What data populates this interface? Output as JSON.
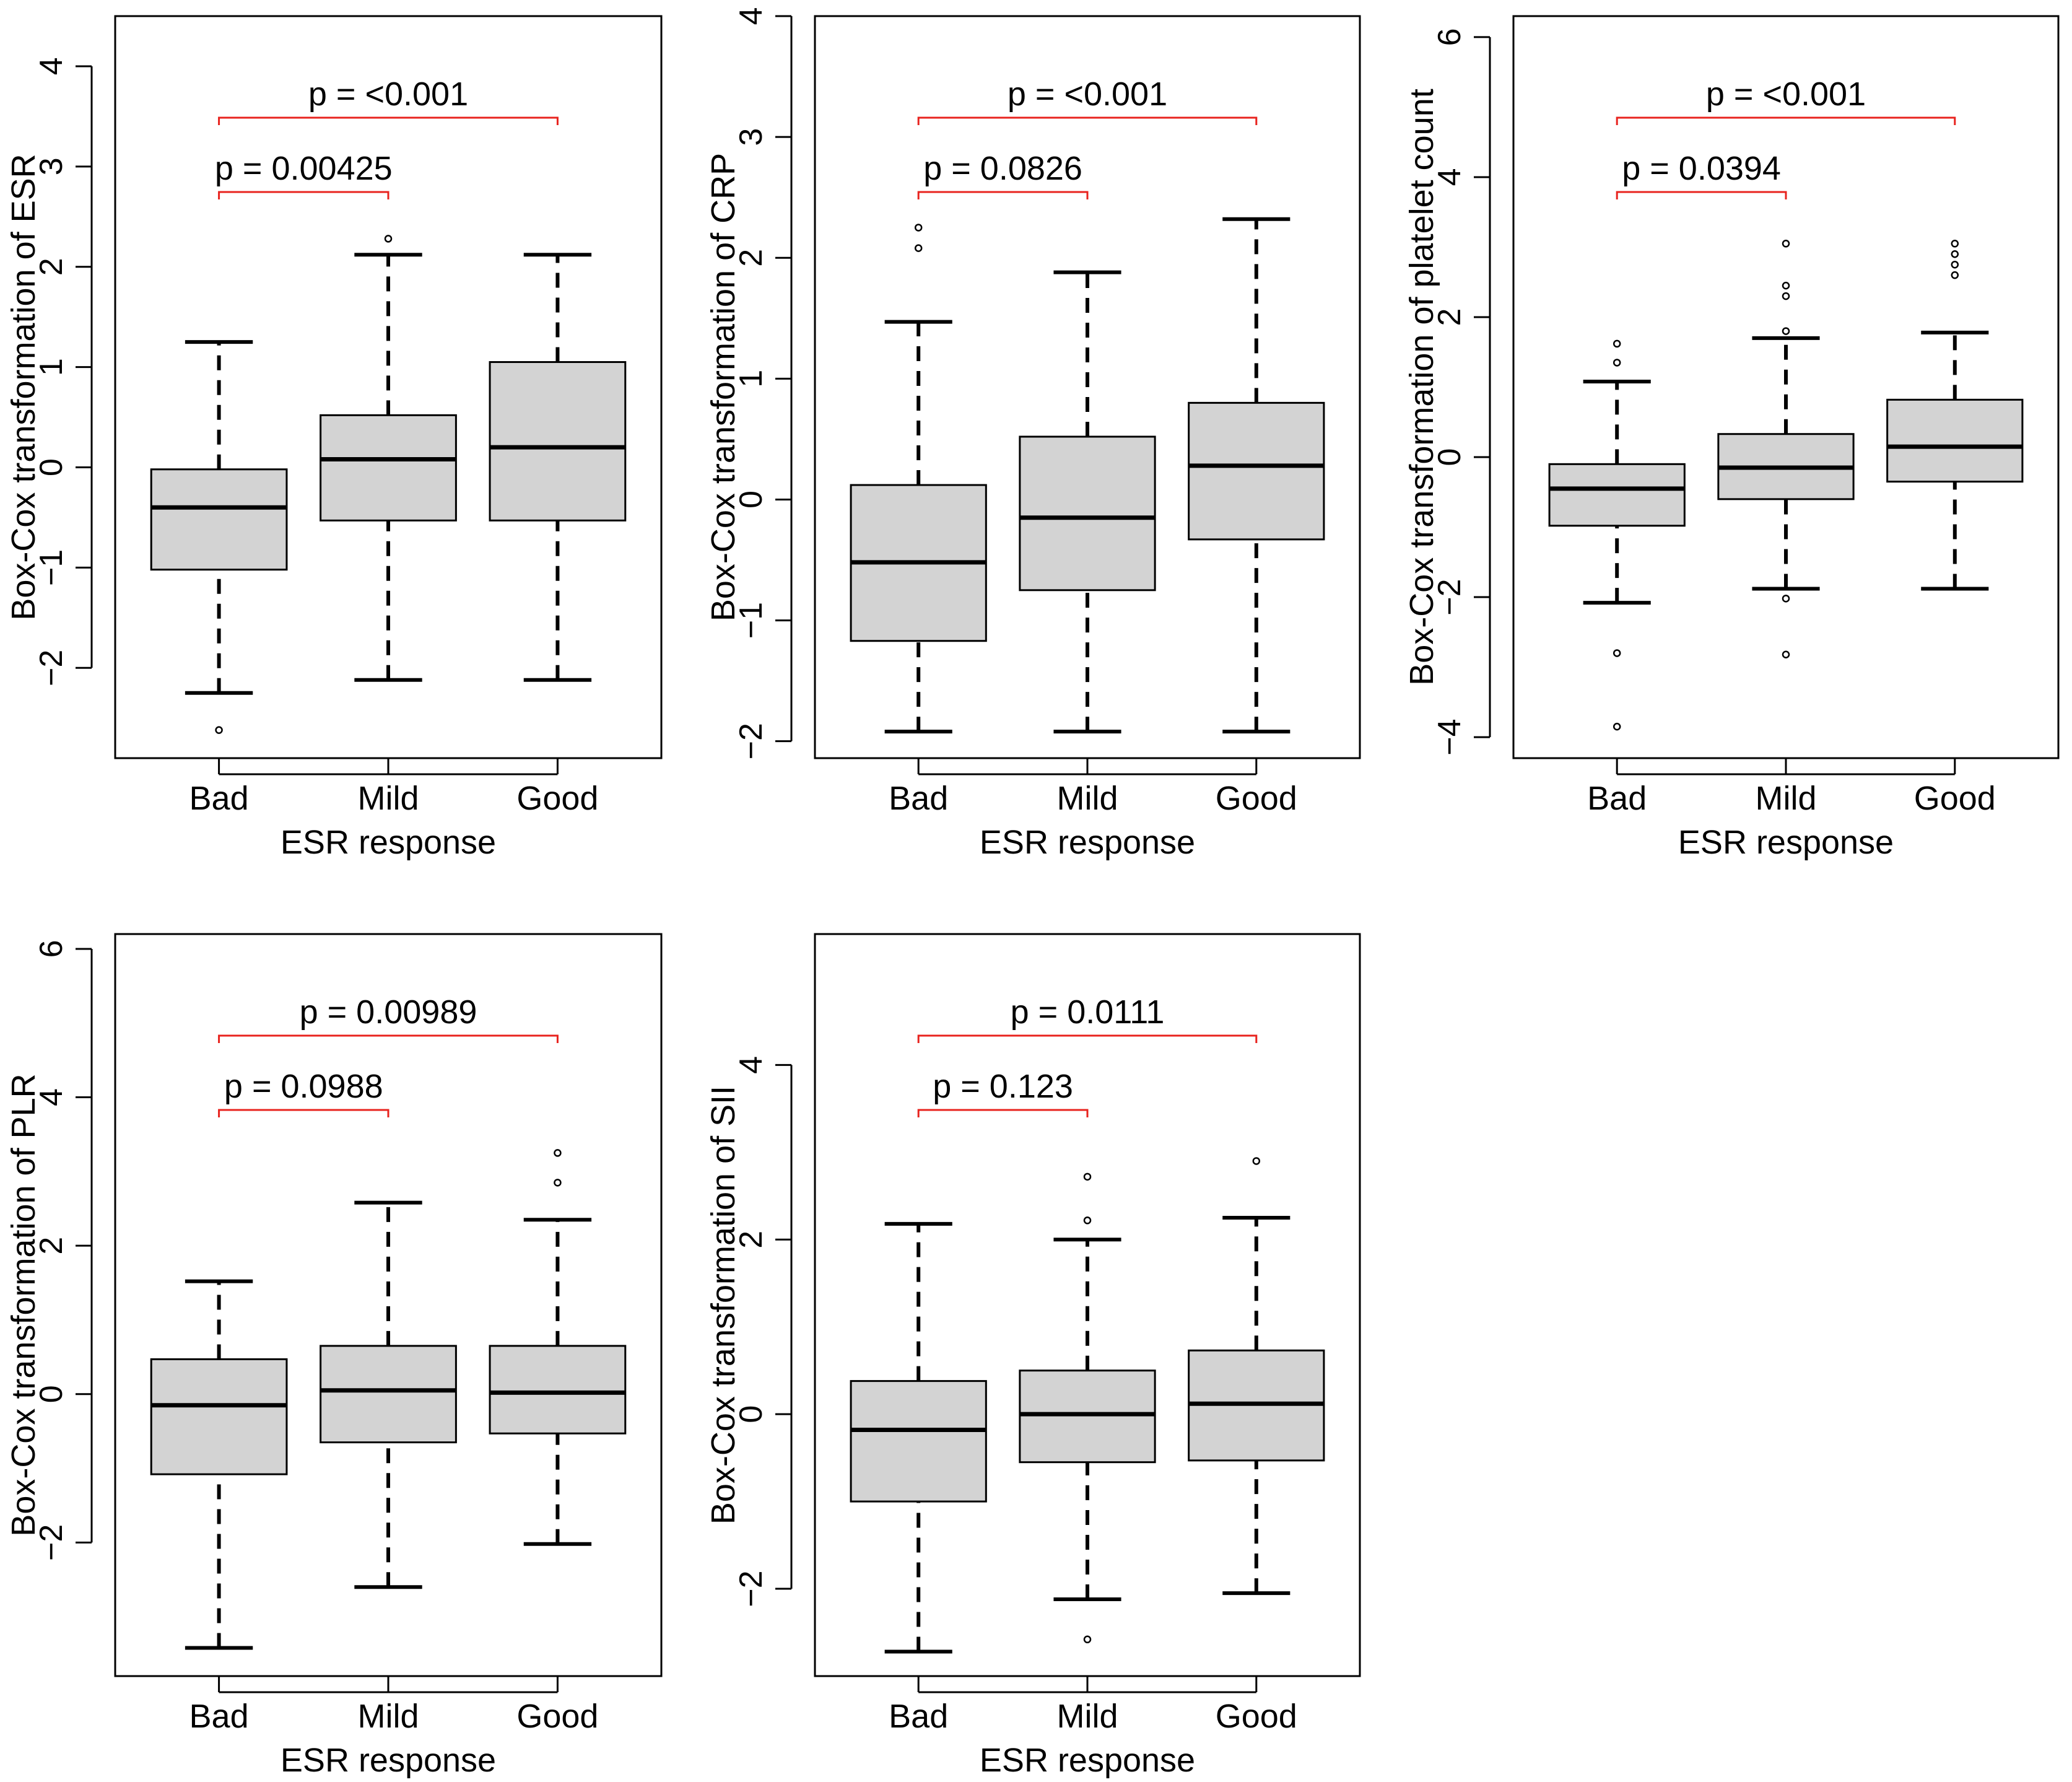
{
  "chart_data": [
    {
      "type": "box",
      "xlabel": "ESR response",
      "ylabel": "Box-Cox transformation of ESR",
      "categories": [
        "Bad",
        "Mild",
        "Good"
      ],
      "yticks": [
        -2,
        -1,
        0,
        1,
        2,
        3,
        4
      ],
      "ylim": [
        -2.9,
        4.5
      ],
      "boxes": [
        {
          "category": "Bad",
          "whisker_low": -2.25,
          "q1": -1.02,
          "median": -0.4,
          "q3": -0.02,
          "whisker_high": 1.25,
          "outliers": [
            -2.62
          ]
        },
        {
          "category": "Mild",
          "whisker_low": -2.12,
          "q1": -0.53,
          "median": 0.08,
          "q3": 0.52,
          "whisker_high": 2.12,
          "outliers": [
            2.28
          ]
        },
        {
          "category": "Good",
          "whisker_low": -2.12,
          "q1": -0.53,
          "median": 0.2,
          "q3": 1.05,
          "whisker_high": 2.12,
          "outliers": []
        }
      ],
      "comparisons": [
        {
          "from": "Bad",
          "to": "Good",
          "label": "p = <0.001",
          "level": 2
        },
        {
          "from": "Bad",
          "to": "Mild",
          "label": "p = 0.00425",
          "level": 1
        }
      ],
      "colors": {
        "box_fill": "#d3d3d3",
        "bracket": "#e8231e"
      }
    },
    {
      "type": "box",
      "xlabel": "ESR response",
      "ylabel": "Box-Cox transformation of CRP",
      "categories": [
        "Bad",
        "Mild",
        "Good"
      ],
      "yticks": [
        -2,
        -1,
        0,
        1,
        2,
        3,
        4
      ],
      "ylim": [
        -2.14,
        4.0
      ],
      "boxes": [
        {
          "category": "Bad",
          "whisker_low": -1.92,
          "q1": -1.17,
          "median": -0.52,
          "q3": 0.12,
          "whisker_high": 1.47,
          "outliers": [
            2.08,
            2.25
          ]
        },
        {
          "category": "Mild",
          "whisker_low": -1.92,
          "q1": -0.75,
          "median": -0.15,
          "q3": 0.52,
          "whisker_high": 1.88,
          "outliers": []
        },
        {
          "category": "Good",
          "whisker_low": -1.92,
          "q1": -0.33,
          "median": 0.28,
          "q3": 0.8,
          "whisker_high": 2.32,
          "outliers": []
        }
      ],
      "comparisons": [
        {
          "from": "Bad",
          "to": "Good",
          "label": "p = <0.001",
          "level": 2
        },
        {
          "from": "Bad",
          "to": "Mild",
          "label": "p = 0.0826",
          "level": 1
        }
      ],
      "colors": {
        "box_fill": "#d3d3d3",
        "bracket": "#e8231e"
      }
    },
    {
      "type": "box",
      "xlabel": "ESR response",
      "ylabel": "Box-Cox transformation of platelet count",
      "categories": [
        "Bad",
        "Mild",
        "Good"
      ],
      "yticks": [
        -4,
        -2,
        0,
        2,
        4,
        6
      ],
      "ylim": [
        -4.3,
        6.3
      ],
      "boxes": [
        {
          "category": "Bad",
          "whisker_low": -2.08,
          "q1": -0.98,
          "median": -0.45,
          "q3": -0.1,
          "whisker_high": 1.08,
          "outliers": [
            -2.8,
            -3.85,
            1.35,
            1.62
          ]
        },
        {
          "category": "Mild",
          "whisker_low": -1.88,
          "q1": -0.6,
          "median": -0.15,
          "q3": 0.33,
          "whisker_high": 1.7,
          "outliers": [
            -2.02,
            -2.82,
            1.8,
            2.3,
            2.45,
            3.05
          ]
        },
        {
          "category": "Good",
          "whisker_low": -1.88,
          "q1": -0.35,
          "median": 0.15,
          "q3": 0.82,
          "whisker_high": 1.78,
          "outliers": [
            2.6,
            2.75,
            2.9,
            3.05
          ]
        }
      ],
      "comparisons": [
        {
          "from": "Bad",
          "to": "Good",
          "label": "p = <0.001",
          "level": 2
        },
        {
          "from": "Bad",
          "to": "Mild",
          "label": "p = 0.0394",
          "level": 1
        }
      ],
      "colors": {
        "box_fill": "#d3d3d3",
        "bracket": "#e8231e"
      }
    },
    {
      "type": "box",
      "xlabel": "ESR response",
      "ylabel": "Box-Cox transformation of PLR",
      "categories": [
        "Bad",
        "Mild",
        "Good"
      ],
      "yticks": [
        -2,
        0,
        2,
        4,
        6
      ],
      "ylim": [
        -3.8,
        6.2
      ],
      "boxes": [
        {
          "category": "Bad",
          "whisker_low": -3.42,
          "q1": -1.08,
          "median": -0.15,
          "q3": 0.47,
          "whisker_high": 1.52,
          "outliers": []
        },
        {
          "category": "Mild",
          "whisker_low": -2.6,
          "q1": -0.65,
          "median": 0.05,
          "q3": 0.65,
          "whisker_high": 2.58,
          "outliers": []
        },
        {
          "category": "Good",
          "whisker_low": -2.02,
          "q1": -0.53,
          "median": 0.02,
          "q3": 0.65,
          "whisker_high": 2.35,
          "outliers": [
            2.85,
            3.25
          ]
        }
      ],
      "comparisons": [
        {
          "from": "Bad",
          "to": "Good",
          "label": "p = 0.00989",
          "level": 2
        },
        {
          "from": "Bad",
          "to": "Mild",
          "label": "p = 0.0988",
          "level": 1
        }
      ],
      "colors": {
        "box_fill": "#d3d3d3",
        "bracket": "#e8231e"
      }
    },
    {
      "type": "box",
      "xlabel": "ESR response",
      "ylabel": "Box-Cox transformation of SII",
      "categories": [
        "Bad",
        "Mild",
        "Good"
      ],
      "yticks": [
        -2,
        0,
        2,
        4
      ],
      "ylim": [
        -3.0,
        5.5
      ],
      "boxes": [
        {
          "category": "Bad",
          "whisker_low": -2.72,
          "q1": -1.0,
          "median": -0.18,
          "q3": 0.38,
          "whisker_high": 2.18,
          "outliers": []
        },
        {
          "category": "Mild",
          "whisker_low": -2.12,
          "q1": -0.55,
          "median": 0.0,
          "q3": 0.5,
          "whisker_high": 2.0,
          "outliers": [
            -2.58,
            2.22,
            2.72
          ]
        },
        {
          "category": "Good",
          "whisker_low": -2.05,
          "q1": -0.53,
          "median": 0.12,
          "q3": 0.73,
          "whisker_high": 2.25,
          "outliers": [
            2.9
          ]
        }
      ],
      "comparisons": [
        {
          "from": "Bad",
          "to": "Good",
          "label": "p = 0.0111",
          "level": 2
        },
        {
          "from": "Bad",
          "to": "Mild",
          "label": "p = 0.123",
          "level": 1
        }
      ],
      "colors": {
        "box_fill": "#d3d3d3",
        "bracket": "#e8231e"
      }
    }
  ]
}
